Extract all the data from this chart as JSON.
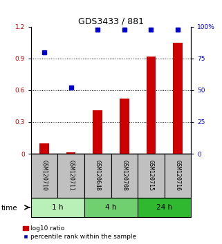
{
  "title": "GDS3433 / 881",
  "samples": [
    "GSM120710",
    "GSM120711",
    "GSM120648",
    "GSM120708",
    "GSM120715",
    "GSM120716"
  ],
  "groups": [
    {
      "label": "1 h",
      "color": "#b8f0b8",
      "indices": [
        0,
        1
      ]
    },
    {
      "label": "4 h",
      "color": "#70d070",
      "indices": [
        2,
        3
      ]
    },
    {
      "label": "24 h",
      "color": "#30b830",
      "indices": [
        4,
        5
      ]
    }
  ],
  "log10_ratio": [
    0.1,
    0.015,
    0.41,
    0.52,
    0.92,
    1.05
  ],
  "percentile_rank": [
    80,
    52,
    98,
    98,
    98,
    98
  ],
  "left_ylim": [
    0,
    1.2
  ],
  "right_ylim": [
    0,
    100
  ],
  "left_yticks": [
    0,
    0.3,
    0.6,
    0.9,
    1.2
  ],
  "right_yticks": [
    0,
    25,
    50,
    75,
    100
  ],
  "bar_color": "#cc0000",
  "dot_color": "#0000cc",
  "label_area_color": "#c0c0c0",
  "time_label": "time",
  "legend_bar": "log10 ratio",
  "legend_dot": "percentile rank within the sample",
  "bar_width": 0.35
}
